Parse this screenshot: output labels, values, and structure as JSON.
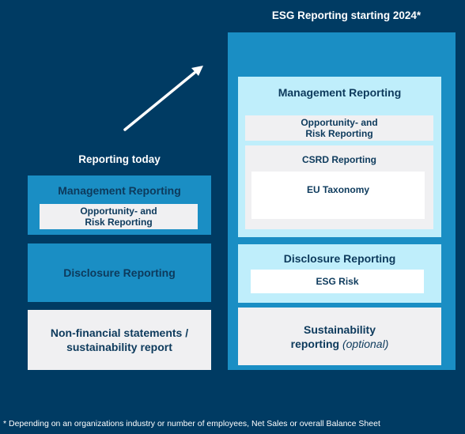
{
  "right": {
    "title": "ESG Reporting starting 2024*",
    "management_reporting": "Management Reporting",
    "opportunity_line1": "Opportunity- and",
    "opportunity_line2": "Risk Reporting",
    "csrd_reporting": "CSRD Reporting",
    "eu_taxonomy": "EU Taxonomy",
    "disclosure_reporting": "Disclosure Reporting",
    "esg_risk": "ESG Risk",
    "sustainability_line1": "Sustainability",
    "sustainability_line2": "reporting",
    "sustainability_optional": "(optional)"
  },
  "left": {
    "title": "Reporting today",
    "management_reporting": "Management Reporting",
    "opportunity_line1": "Opportunity- and",
    "opportunity_line2": "Risk Reporting",
    "disclosure_reporting": "Disclosure Reporting",
    "nonfinancial_line1": "Non-financial statements /",
    "nonfinancial_line2": "sustainability report"
  },
  "footnote": "* Depending on an organizations industry or number of employees, Net Sales or overall Balance Sheet",
  "colors": {
    "background": "#003b63",
    "teal": "#1a8ec4",
    "light_blue": "#bfeefb",
    "light_gray": "#f0f0f2",
    "text_navy": "#0d3a5c"
  },
  "icons": {
    "arrow": "arrow-up-right-icon"
  }
}
